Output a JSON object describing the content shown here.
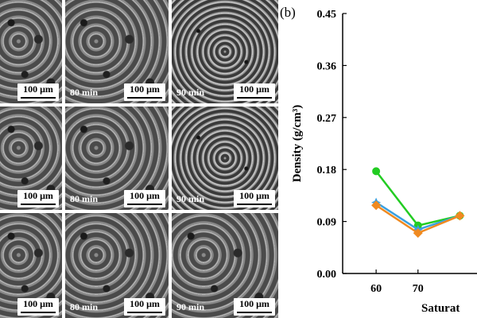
{
  "panel_label": "(b)",
  "micrographs": {
    "scale_text": "100 μm",
    "rows": [
      [
        "",
        "80 min",
        "90 min"
      ],
      [
        "",
        "80 min",
        "90 min"
      ],
      [
        "",
        "80 min",
        "90 min"
      ]
    ]
  },
  "chart_data": {
    "type": "line",
    "x": [
      60,
      70,
      80
    ],
    "xlim": [
      52,
      86
    ],
    "ylim": [
      0.0,
      0.45
    ],
    "yticks": [
      "0.00",
      "0.09",
      "0.18",
      "0.27",
      "0.36",
      "0.45"
    ],
    "xticks": [
      "60",
      "70"
    ],
    "ylabel": "Density (g/cm³)",
    "xlabel": "Saturat",
    "grid": false,
    "series": [
      {
        "color": "#22cc22",
        "marker": "circle",
        "values": [
          0.177,
          0.083,
          0.1
        ]
      },
      {
        "color": "#3aa0e0",
        "marker": "star",
        "values": [
          0.123,
          0.076,
          0.1
        ]
      },
      {
        "color": "#f08a20",
        "marker": "diamond",
        "values": [
          0.118,
          0.07,
          0.1
        ]
      }
    ]
  }
}
